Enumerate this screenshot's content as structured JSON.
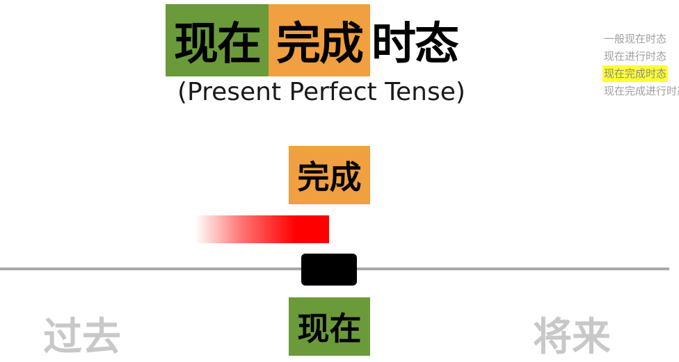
{
  "title": {
    "part1": "现在",
    "part2": "完成",
    "part3": "时态"
  },
  "subtitle": "(Present Perfect Tense)",
  "side_menu": {
    "items": [
      {
        "label": "一般现在时态",
        "active": false
      },
      {
        "label": "现在进行时态",
        "active": false
      },
      {
        "label": "现在完成时态",
        "active": true
      },
      {
        "label": "现在完成进行时态",
        "active": false
      }
    ]
  },
  "timeline": {
    "completed_label": "完成",
    "now_label": "现在",
    "past_label": "过去",
    "future_label": "将来"
  },
  "colors": {
    "now": "#6a9a3a",
    "completed": "#f0a040",
    "duration_bar": "#ff0000",
    "highlight": "#ffff33",
    "axis": "#a8a8a8"
  }
}
